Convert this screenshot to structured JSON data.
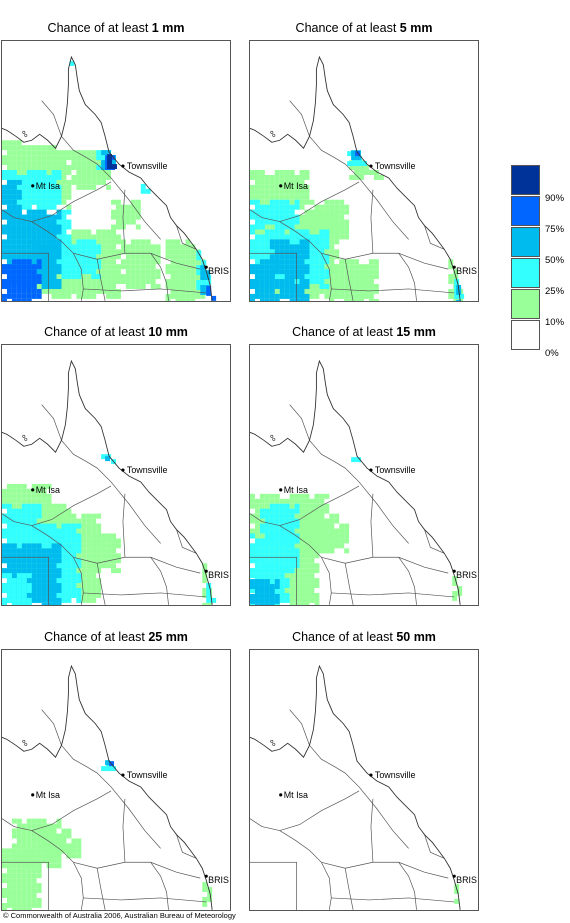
{
  "panels": [
    {
      "title_prefix": "Chance of at least ",
      "amount": "1 mm",
      "intensity": 5
    },
    {
      "title_prefix": "Chance of at least ",
      "amount": "5 mm",
      "intensity": 4
    },
    {
      "title_prefix": "Chance of at least ",
      "amount": "10 mm",
      "intensity": 3
    },
    {
      "title_prefix": "Chance of at least ",
      "amount": "15 mm",
      "intensity": 2
    },
    {
      "title_prefix": "Chance of at least ",
      "amount": "25 mm",
      "intensity": 1
    },
    {
      "title_prefix": "Chance of at least ",
      "amount": "50 mm",
      "intensity": 0
    }
  ],
  "places": {
    "townsville": "Townsville",
    "mount_isa": "Mt Isa",
    "brisbane": "BRIS"
  },
  "legend": {
    "colors": [
      "#003399",
      "#0066ff",
      "#00bbee",
      "#33ffff",
      "#99ff99",
      "#ffffff"
    ],
    "labels": [
      "90%",
      "75%",
      "50%",
      "25%",
      "10%",
      "0%"
    ]
  },
  "copyright": "© Commonwealth of Australia 2006, Australian Bureau of Meteorology"
}
